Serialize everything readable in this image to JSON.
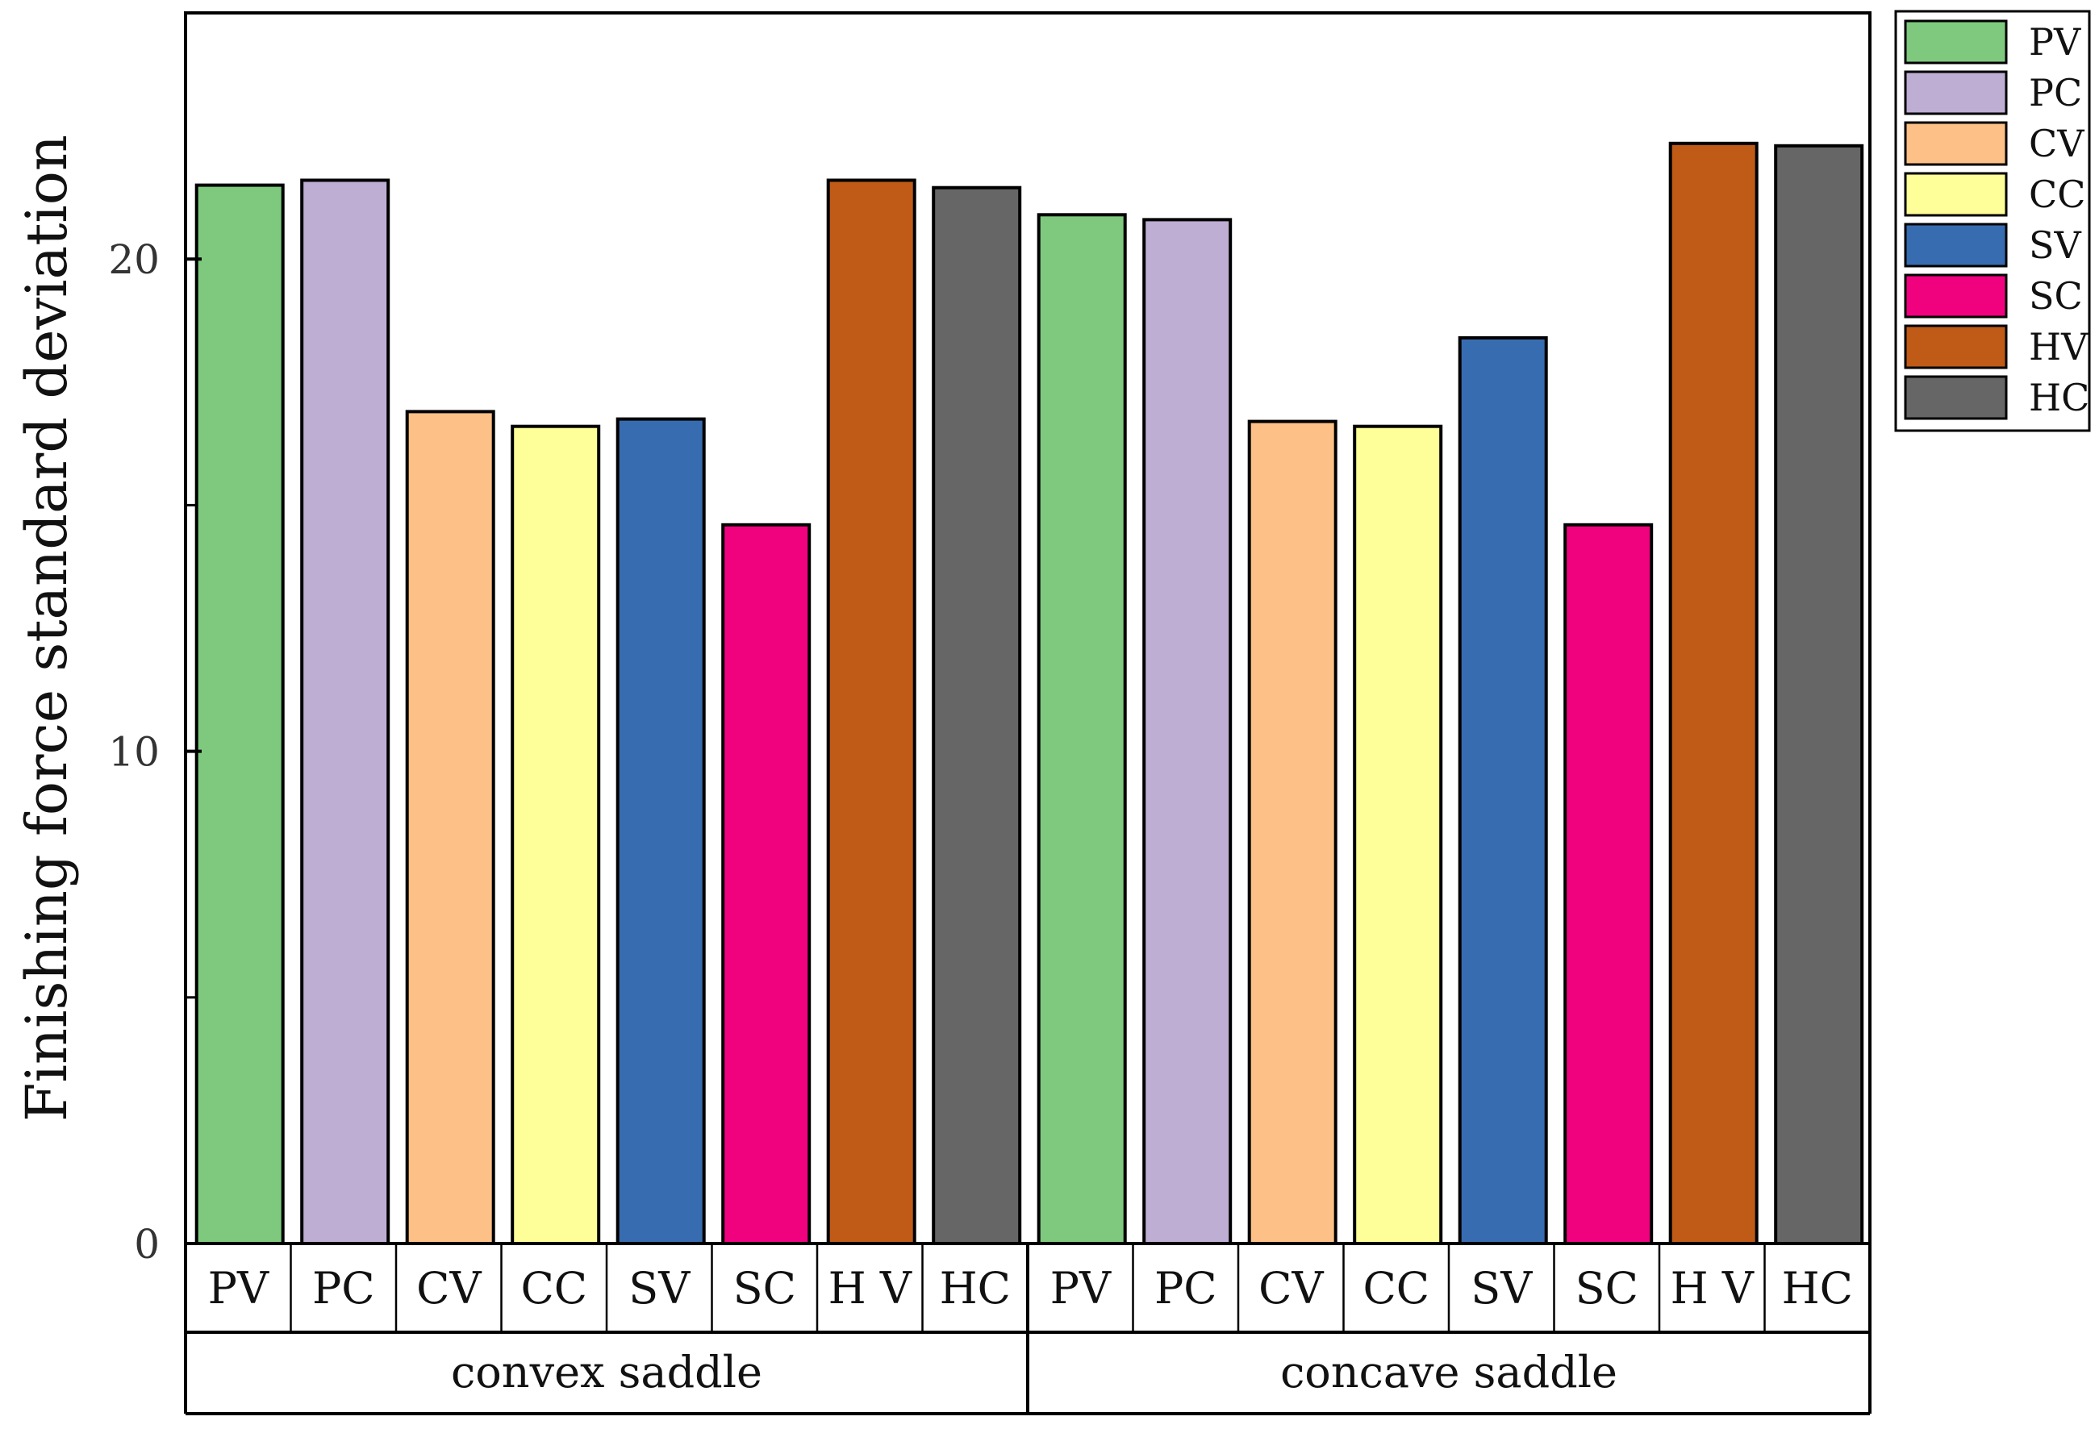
{
  "chart_data": {
    "type": "bar",
    "title": "",
    "xlabel": "",
    "ylabel": "Finishing force standard deviation",
    "ylim": [
      0,
      25
    ],
    "yticks_major": [
      0,
      10,
      20
    ],
    "yticks_minor": [
      5,
      15
    ],
    "grid": false,
    "legend_position": "outside-top-right",
    "series_names": [
      "PV",
      "PC",
      "CV",
      "CC",
      "SV",
      "SC",
      "HV",
      "HC"
    ],
    "colors": {
      "PV": "#7fc97f",
      "PC": "#beaed4",
      "CV": "#fdc086",
      "CC": "#ffff99",
      "SV": "#386cb0",
      "SC": "#f0027f",
      "HV": "#bf5b17",
      "HC": "#666666"
    },
    "category_labels": {
      "PV": "PV",
      "PC": "PC",
      "CV": "CV",
      "CC": "CC",
      "SV": "SV",
      "SC": "SC",
      "HV": "H V",
      "HC": "HC"
    },
    "groups": [
      {
        "name": "convex saddle",
        "values": [
          21.5,
          21.6,
          16.9,
          16.6,
          16.75,
          14.6,
          21.6,
          21.45
        ]
      },
      {
        "name": "concave saddle",
        "values": [
          20.9,
          20.8,
          16.7,
          16.6,
          18.4,
          14.6,
          22.35,
          22.3
        ]
      }
    ]
  }
}
